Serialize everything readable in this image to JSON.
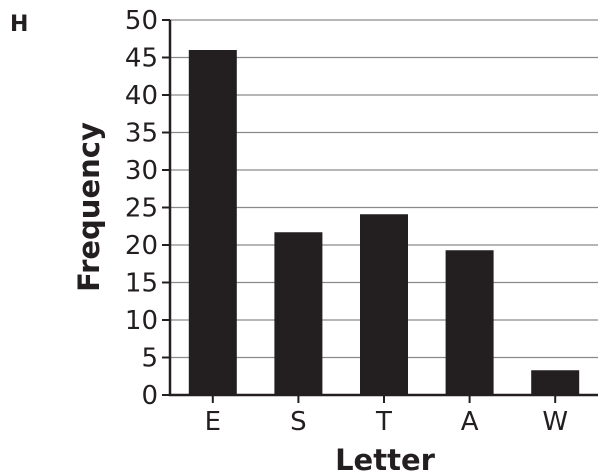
{
  "panel_label": "H",
  "colors": {
    "bar": "#231f20",
    "axis": "#231f20",
    "grid": "#8a8a8a",
    "text": "#231f20"
  },
  "chart_data": {
    "type": "bar",
    "categories": [
      "E",
      "S",
      "T",
      "A",
      "W"
    ],
    "values": [
      46,
      21.7,
      24.1,
      19.3,
      3.3
    ],
    "title": "",
    "xlabel": "Letter",
    "ylabel": "Frequency",
    "ylim": [
      0,
      50
    ],
    "y_ticks": [
      0,
      5,
      10,
      15,
      20,
      25,
      30,
      35,
      40,
      45,
      50
    ],
    "grid": true,
    "legend": "none"
  }
}
